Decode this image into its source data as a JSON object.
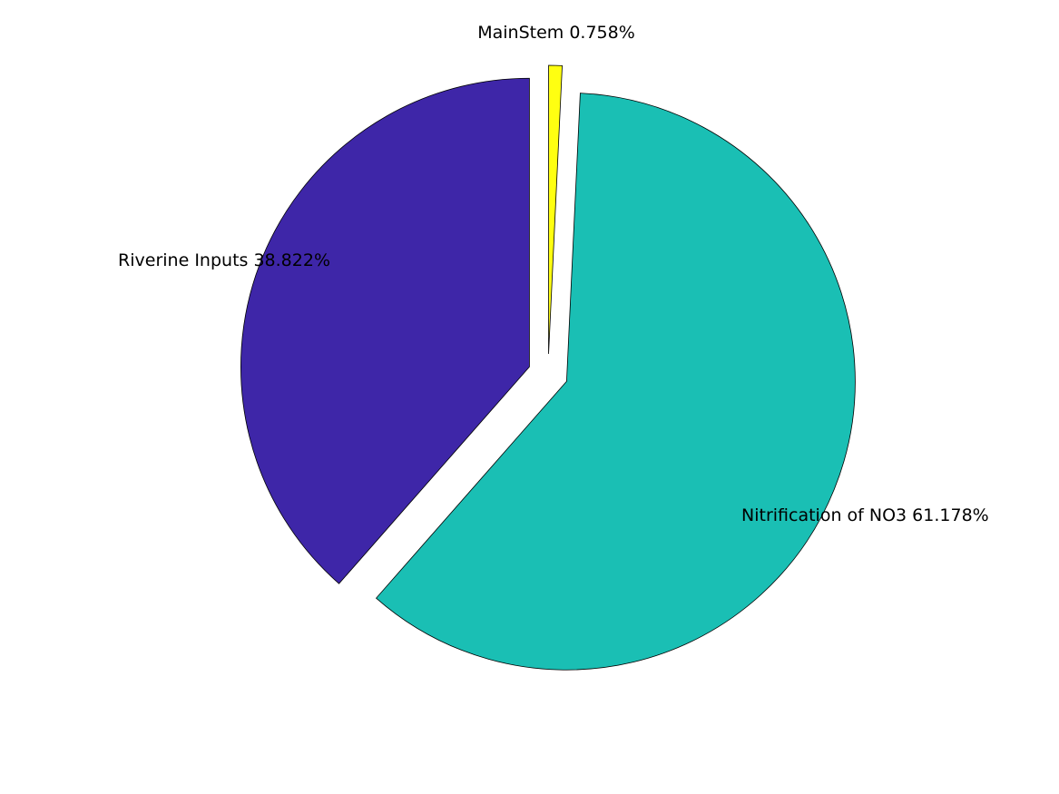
{
  "chart_data": {
    "type": "pie",
    "exploded": true,
    "slices": [
      {
        "label": "MainStem",
        "percent_label": "0.758%",
        "value": 0.758,
        "color": "#FFFF11",
        "exploded": true
      },
      {
        "label": "Nitrification of NO3",
        "percent_label": "61.178%",
        "value": 61.178,
        "color": "#1ABFB4",
        "exploded": true
      },
      {
        "label": "Riverine Inputs",
        "percent_label": "38.822%",
        "value": 38.822,
        "color": "#3E26A8",
        "exploded": true
      }
    ],
    "labels": [
      "MainStem 0.758%",
      "Nitrification of NO3 61.178%",
      "Riverine Inputs 38.822%"
    ]
  }
}
